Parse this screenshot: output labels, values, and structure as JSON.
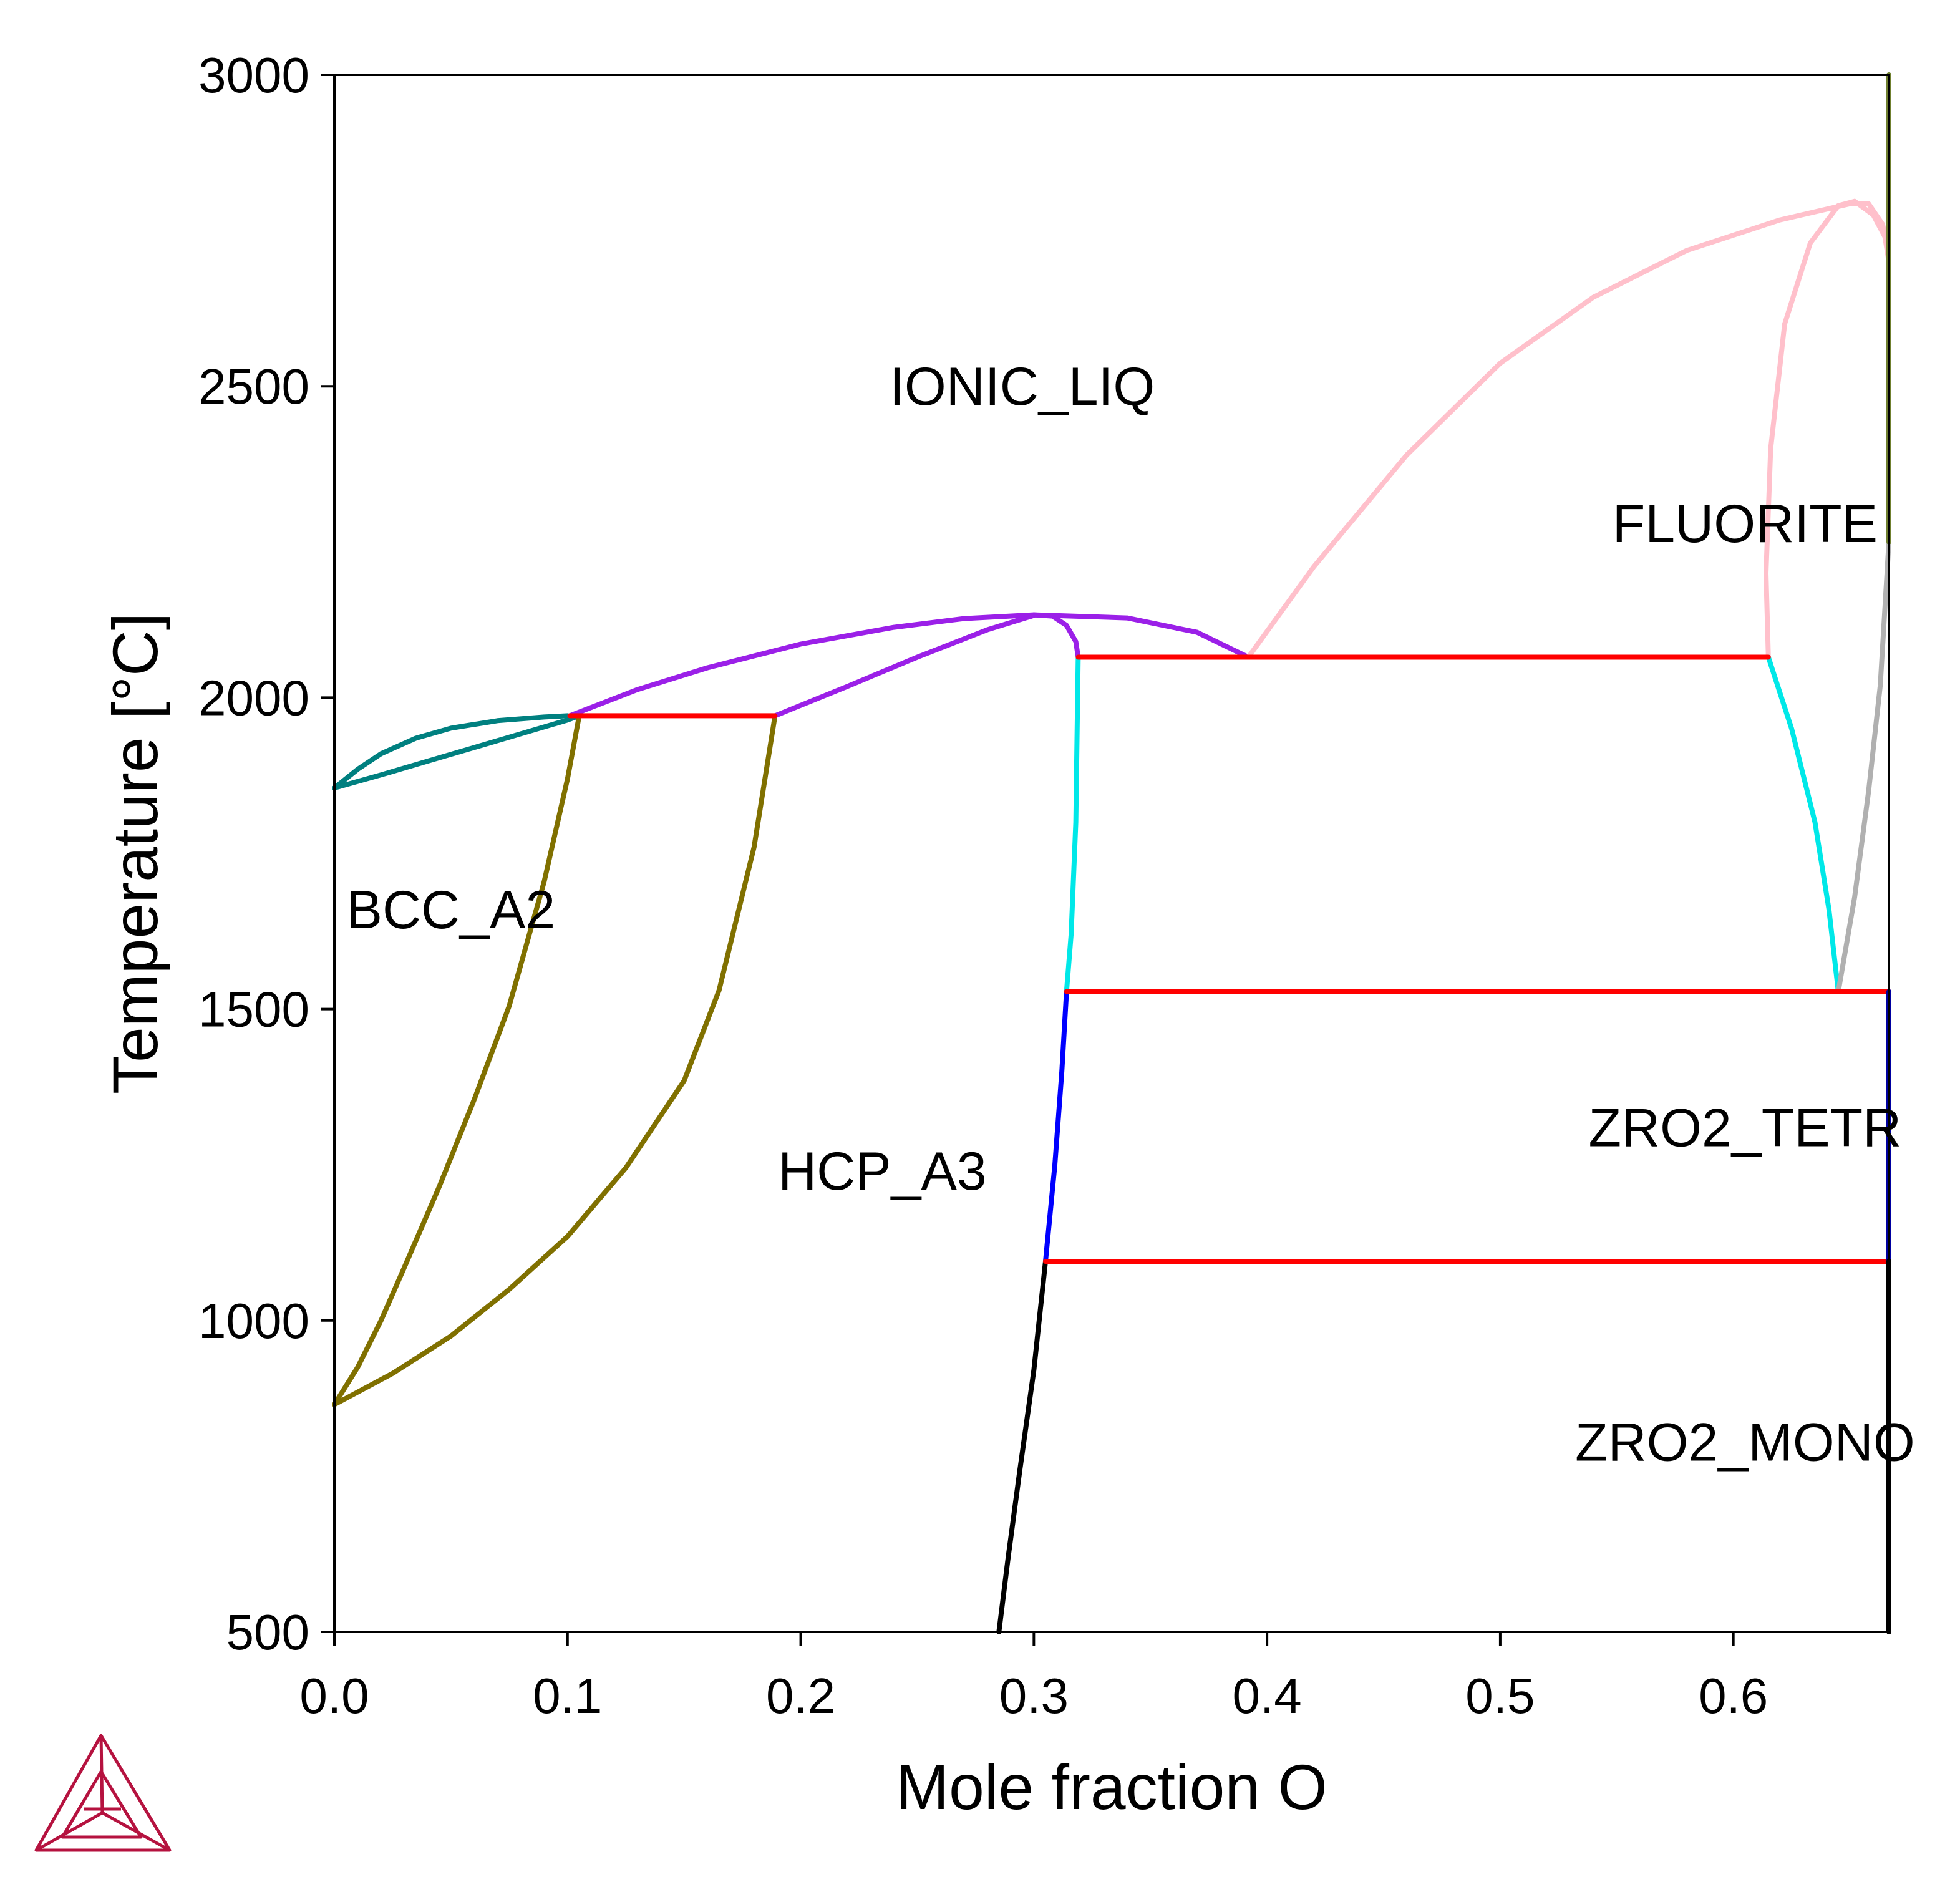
{
  "chart_data": {
    "type": "line",
    "xlabel": "Mole fraction O",
    "ylabel": "Temperature [°C]",
    "xlim": [
      0.0,
      0.6667
    ],
    "ylim": [
      500,
      3000
    ],
    "x_ticks": [
      {
        "value": 0.0,
        "label": "0.0"
      },
      {
        "value": 0.1,
        "label": "0.1"
      },
      {
        "value": 0.2,
        "label": "0.2"
      },
      {
        "value": 0.3,
        "label": "0.3"
      },
      {
        "value": 0.4,
        "label": "0.4"
      },
      {
        "value": 0.5,
        "label": "0.5"
      },
      {
        "value": 0.6,
        "label": "0.6"
      }
    ],
    "y_ticks": [
      {
        "value": 500,
        "label": "500"
      },
      {
        "value": 1000,
        "label": "1000"
      },
      {
        "value": 1500,
        "label": "1500"
      },
      {
        "value": 2000,
        "label": "2000"
      },
      {
        "value": 2500,
        "label": "2500"
      },
      {
        "value": 3000,
        "label": "3000"
      }
    ],
    "phase_labels": [
      {
        "text": "IONIC_LIQ",
        "x": 0.295,
        "y": 2500
      },
      {
        "text": "FLUORITE",
        "x": 0.605,
        "y": 2280
      },
      {
        "text": "BCC_A2",
        "x": 0.05,
        "y": 1660
      },
      {
        "text": "HCP_A3",
        "x": 0.235,
        "y": 1240
      },
      {
        "text": "ZRO2_TETR",
        "x": 0.605,
        "y": 1310
      },
      {
        "text": "ZRO2_MONO",
        "x": 0.605,
        "y": 805
      }
    ],
    "series": [
      {
        "color": "#008080",
        "points": [
          [
            0.0,
            1855
          ],
          [
            0.01,
            1885
          ],
          [
            0.02,
            1910
          ],
          [
            0.035,
            1935
          ],
          [
            0.05,
            1951
          ],
          [
            0.07,
            1963
          ],
          [
            0.09,
            1969
          ],
          [
            0.1,
            1971
          ]
        ]
      },
      {
        "color": "#008080",
        "points": [
          [
            0.0,
            1855
          ],
          [
            0.02,
            1876
          ],
          [
            0.04,
            1898
          ],
          [
            0.06,
            1920
          ],
          [
            0.08,
            1942
          ],
          [
            0.1,
            1964
          ],
          [
            0.105,
            1971
          ]
        ]
      },
      {
        "color": "#807000",
        "points": [
          [
            0.0,
            865
          ],
          [
            0.01,
            925
          ],
          [
            0.02,
            1000
          ],
          [
            0.03,
            1085
          ],
          [
            0.045,
            1215
          ],
          [
            0.06,
            1355
          ],
          [
            0.075,
            1505
          ],
          [
            0.09,
            1705
          ],
          [
            0.1,
            1870
          ],
          [
            0.105,
            1971
          ]
        ]
      },
      {
        "color": "#807000",
        "points": [
          [
            0.0,
            865
          ],
          [
            0.025,
            915
          ],
          [
            0.05,
            975
          ],
          [
            0.075,
            1050
          ],
          [
            0.1,
            1135
          ],
          [
            0.125,
            1245
          ],
          [
            0.15,
            1385
          ],
          [
            0.165,
            1530
          ],
          [
            0.18,
            1760
          ],
          [
            0.189,
            1971
          ]
        ]
      },
      {
        "color": "#9b20e8",
        "points": [
          [
            0.101,
            1971
          ],
          [
            0.13,
            2013
          ],
          [
            0.16,
            2048
          ],
          [
            0.2,
            2086
          ],
          [
            0.24,
            2113
          ],
          [
            0.27,
            2127
          ],
          [
            0.3,
            2133
          ]
        ]
      },
      {
        "color": "#9b20e8",
        "points": [
          [
            0.189,
            1971
          ],
          [
            0.22,
            2018
          ],
          [
            0.25,
            2065
          ],
          [
            0.28,
            2109
          ],
          [
            0.3,
            2132
          ]
        ]
      },
      {
        "color": "#9b20e8",
        "points": [
          [
            0.3,
            2133
          ],
          [
            0.308,
            2131
          ],
          [
            0.314,
            2116
          ],
          [
            0.318,
            2090
          ],
          [
            0.319,
            2065
          ]
        ]
      },
      {
        "color": "#9b20e8",
        "points": [
          [
            0.3,
            2133
          ],
          [
            0.34,
            2128
          ],
          [
            0.37,
            2105
          ],
          [
            0.392,
            2065
          ]
        ]
      },
      {
        "color": "#ffc0cb",
        "points": [
          [
            0.392,
            2065
          ],
          [
            0.42,
            2210
          ],
          [
            0.46,
            2390
          ],
          [
            0.5,
            2537
          ],
          [
            0.54,
            2643
          ],
          [
            0.58,
            2718
          ],
          [
            0.62,
            2767
          ],
          [
            0.65,
            2793
          ]
        ]
      },
      {
        "color": "#ffc0cb",
        "points": [
          [
            0.65,
            2793
          ],
          [
            0.658,
            2793
          ],
          [
            0.664,
            2760
          ],
          [
            0.6667,
            2710
          ]
        ]
      },
      {
        "color": "#ffc0cb",
        "points": [
          [
            0.615,
            2065
          ],
          [
            0.614,
            2200
          ],
          [
            0.616,
            2400
          ],
          [
            0.622,
            2600
          ],
          [
            0.633,
            2730
          ],
          [
            0.645,
            2790
          ],
          [
            0.652,
            2797
          ]
        ]
      },
      {
        "color": "#ffc0cb",
        "points": [
          [
            0.652,
            2797
          ],
          [
            0.66,
            2775
          ],
          [
            0.665,
            2740
          ],
          [
            0.6667,
            2700
          ]
        ]
      },
      {
        "color": "#00e8e8",
        "points": [
          [
            0.319,
            2065
          ],
          [
            0.318,
            1800
          ],
          [
            0.316,
            1620
          ],
          [
            0.314,
            1528
          ]
        ]
      },
      {
        "color": "#00e8e8",
        "points": [
          [
            0.615,
            2065
          ],
          [
            0.625,
            1950
          ],
          [
            0.635,
            1800
          ],
          [
            0.641,
            1660
          ],
          [
            0.645,
            1528
          ]
        ]
      },
      {
        "color": "#b0b0b0",
        "points": [
          [
            0.645,
            1528
          ],
          [
            0.652,
            1680
          ],
          [
            0.658,
            1850
          ],
          [
            0.663,
            2020
          ],
          [
            0.6667,
            2250
          ]
        ]
      },
      {
        "color": "#0000ff",
        "points": [
          [
            0.314,
            1528
          ],
          [
            0.312,
            1400
          ],
          [
            0.309,
            1250
          ],
          [
            0.305,
            1095
          ]
        ]
      },
      {
        "color": "#000000",
        "points": [
          [
            0.305,
            1095
          ],
          [
            0.3,
            920
          ],
          [
            0.294,
            760
          ],
          [
            0.289,
            620
          ],
          [
            0.285,
            500
          ]
        ]
      },
      {
        "color": "#ff0000",
        "points": [
          [
            0.101,
            1971
          ],
          [
            0.189,
            1971
          ]
        ]
      },
      {
        "color": "#ff0000",
        "points": [
          [
            0.319,
            2065
          ],
          [
            0.615,
            2065
          ]
        ]
      },
      {
        "color": "#ff0000",
        "points": [
          [
            0.314,
            1528
          ],
          [
            0.6667,
            1528
          ]
        ]
      },
      {
        "color": "#ff0000",
        "points": [
          [
            0.305,
            1095
          ],
          [
            0.6667,
            1095
          ]
        ]
      },
      {
        "color": "#708030",
        "points": [
          [
            0.6667,
            2250
          ],
          [
            0.6667,
            3000
          ]
        ]
      },
      {
        "color": "#0000a0",
        "points": [
          [
            0.6667,
            1095
          ],
          [
            0.6667,
            1528
          ]
        ]
      },
      {
        "color": "#000000",
        "points": [
          [
            0.6667,
            500
          ],
          [
            0.6667,
            1095
          ]
        ]
      }
    ]
  },
  "logo": {
    "name": "thermo-calc-logo",
    "color": "#b5123f"
  }
}
